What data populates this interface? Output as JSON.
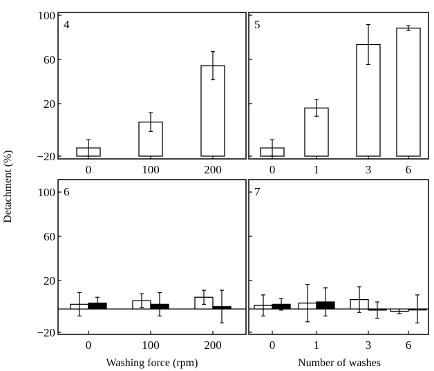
{
  "figure": {
    "ylabel": "Detachment (%)",
    "xlabel_left": "Washing force (rpm)",
    "xlabel_right": "Number of washes"
  },
  "chart_data": [
    {
      "panel": "4",
      "type": "bar",
      "categories": [
        "0",
        "100",
        "200"
      ],
      "series": [
        {
          "fill": "#ffffff",
          "values": [
            -13,
            9,
            57
          ],
          "errors": [
            7,
            8,
            12
          ]
        }
      ],
      "ylim": [
        -20,
        100
      ],
      "yticks": [
        "100",
        "60",
        "20",
        "−20"
      ]
    },
    {
      "panel": "5",
      "type": "bar",
      "categories": [
        "0",
        "1",
        "3",
        "6"
      ],
      "series": [
        {
          "fill": "#ffffff",
          "values": [
            -13,
            21,
            75,
            89
          ],
          "errors": [
            7,
            7,
            17,
            2
          ]
        }
      ],
      "ylim": [
        -20,
        100
      ]
    },
    {
      "panel": "6",
      "type": "bar",
      "categories": [
        "0",
        "100",
        "200"
      ],
      "series": [
        {
          "fill": "#ffffff",
          "values": [
            4,
            7,
            10
          ],
          "errors": [
            10,
            6,
            6
          ]
        },
        {
          "fill": "#000000",
          "values": [
            5,
            4,
            2
          ],
          "errors": [
            5,
            10,
            14
          ]
        }
      ],
      "ylim": [
        -20,
        100
      ],
      "yticks": [
        "100",
        "60",
        "20",
        "−20"
      ]
    },
    {
      "panel": "7",
      "type": "bar",
      "categories": [
        "0",
        "1",
        "3",
        "6"
      ],
      "series": [
        {
          "fill": "#ffffff",
          "values": [
            3,
            5,
            8,
            -2
          ],
          "errors": [
            9,
            16,
            11,
            2
          ]
        },
        {
          "fill": "#000000",
          "values": [
            4,
            6,
            -1,
            0
          ],
          "errors": [
            5,
            12,
            7,
            12
          ]
        }
      ],
      "ylim": [
        -20,
        100
      ]
    }
  ]
}
